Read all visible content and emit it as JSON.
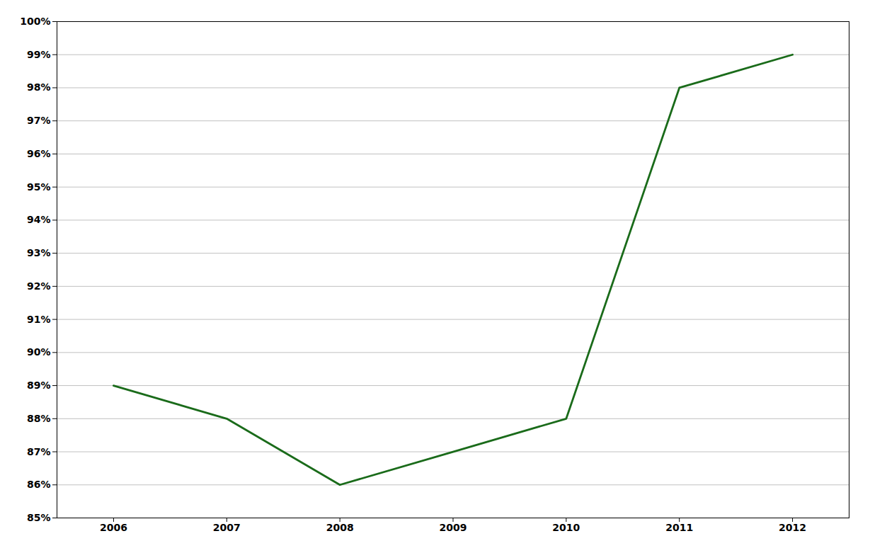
{
  "chart_data": {
    "type": "line",
    "x": [
      2006,
      2007,
      2008,
      2009,
      2010,
      2011,
      2012
    ],
    "series": [
      {
        "color": "#1a6b1a",
        "values": [
          0.89,
          0.88,
          0.86,
          0.87,
          0.88,
          0.98,
          0.99
        ]
      }
    ],
    "xlim": [
      2005.5,
      2012.5
    ],
    "xticks": [
      2006,
      2007,
      2008,
      2009,
      2010,
      2011,
      2012
    ],
    "ylim": [
      0.85,
      1.0
    ],
    "yticks": [
      {
        "value": 0.85,
        "label": "85%"
      },
      {
        "value": 0.86,
        "label": "86%"
      },
      {
        "value": 0.87,
        "label": "87%"
      },
      {
        "value": 0.88,
        "label": "88%"
      },
      {
        "value": 0.89,
        "label": "89%"
      },
      {
        "value": 0.9,
        "label": "90%"
      },
      {
        "value": 0.91,
        "label": "91%"
      },
      {
        "value": 0.92,
        "label": "92%"
      },
      {
        "value": 0.93,
        "label": "93%"
      },
      {
        "value": 0.94,
        "label": "94%"
      },
      {
        "value": 0.95,
        "label": "95%"
      },
      {
        "value": 0.96,
        "label": "96%"
      },
      {
        "value": 0.97,
        "label": "97%"
      },
      {
        "value": 0.98,
        "label": "98%"
      },
      {
        "value": 0.99,
        "label": "99%"
      },
      {
        "value": 1.0,
        "label": "100%"
      }
    ],
    "grid": true
  }
}
